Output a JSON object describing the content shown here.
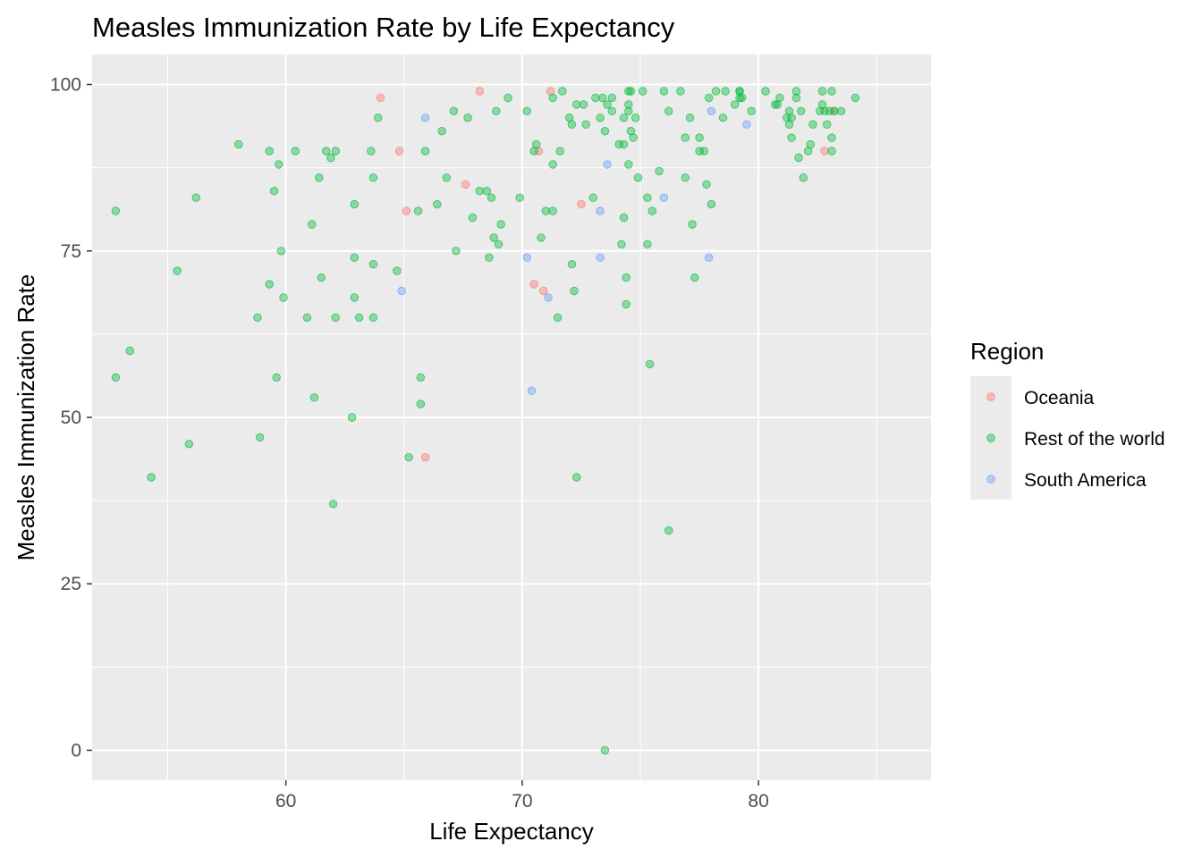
{
  "chart_data": {
    "type": "scatter",
    "title": "Measles Immunization Rate by Life Expectancy",
    "xlabel": "Life Expectancy",
    "ylabel": "Measles Immunization Rate",
    "xlim": [
      51.8,
      87.3
    ],
    "ylim": [
      -4.5,
      104.5
    ],
    "x_major_ticks": [
      60,
      70,
      80
    ],
    "x_minor_ticks": [
      55,
      65,
      75,
      85
    ],
    "y_major_ticks": [
      0,
      25,
      50,
      75,
      100
    ],
    "y_minor_ticks": [
      12.5,
      37.5,
      62.5,
      87.5
    ],
    "x_tick_labels": [
      "60",
      "70",
      "80"
    ],
    "y_tick_labels": [
      "0",
      "25",
      "50",
      "75",
      "100"
    ],
    "grid": true,
    "panel_background": "#ebebeb",
    "point_opacity": 0.4,
    "legend": {
      "title": "Region",
      "position": "right",
      "entries": [
        "Oceania",
        "Rest of the world",
        "South America"
      ]
    },
    "series": [
      {
        "name": "Oceania",
        "color": "#F8766D",
        "points": [
          [
            64.0,
            98
          ],
          [
            64.8,
            90
          ],
          [
            65.1,
            81
          ],
          [
            65.9,
            44
          ],
          [
            67.6,
            85
          ],
          [
            68.2,
            99
          ],
          [
            70.5,
            70
          ],
          [
            70.7,
            90
          ],
          [
            70.9,
            69
          ],
          [
            71.2,
            99
          ],
          [
            72.5,
            82
          ],
          [
            82.8,
            90
          ],
          [
            83.2,
            96
          ]
        ]
      },
      {
        "name": "Rest of the world",
        "color": "#00BA38",
        "points": [
          [
            52.8,
            81
          ],
          [
            52.8,
            56
          ],
          [
            53.4,
            60
          ],
          [
            54.3,
            41
          ],
          [
            55.4,
            72
          ],
          [
            55.9,
            46
          ],
          [
            56.2,
            83
          ],
          [
            58.0,
            91
          ],
          [
            58.8,
            65
          ],
          [
            58.9,
            47
          ],
          [
            59.3,
            90
          ],
          [
            59.3,
            70
          ],
          [
            59.5,
            84
          ],
          [
            59.6,
            56
          ],
          [
            59.7,
            88
          ],
          [
            59.8,
            75
          ],
          [
            59.9,
            68
          ],
          [
            60.4,
            90
          ],
          [
            60.9,
            65
          ],
          [
            61.1,
            79
          ],
          [
            61.2,
            53
          ],
          [
            61.4,
            86
          ],
          [
            61.5,
            71
          ],
          [
            61.7,
            90
          ],
          [
            61.9,
            89
          ],
          [
            62.0,
            37
          ],
          [
            62.1,
            90
          ],
          [
            62.1,
            65
          ],
          [
            62.8,
            50
          ],
          [
            62.9,
            82
          ],
          [
            62.9,
            74
          ],
          [
            62.9,
            68
          ],
          [
            63.1,
            65
          ],
          [
            63.6,
            90
          ],
          [
            63.7,
            86
          ],
          [
            63.7,
            73
          ],
          [
            63.7,
            65
          ],
          [
            63.9,
            95
          ],
          [
            64.7,
            72
          ],
          [
            65.2,
            44
          ],
          [
            65.6,
            81
          ],
          [
            65.7,
            56
          ],
          [
            65.7,
            52
          ],
          [
            65.9,
            90
          ],
          [
            66.4,
            82
          ],
          [
            66.6,
            93
          ],
          [
            66.8,
            86
          ],
          [
            67.1,
            96
          ],
          [
            67.2,
            75
          ],
          [
            67.7,
            95
          ],
          [
            67.9,
            80
          ],
          [
            68.2,
            84
          ],
          [
            68.5,
            84
          ],
          [
            68.6,
            74
          ],
          [
            68.7,
            83
          ],
          [
            68.8,
            77
          ],
          [
            68.9,
            96
          ],
          [
            69.0,
            76
          ],
          [
            69.1,
            79
          ],
          [
            69.4,
            98
          ],
          [
            69.9,
            83
          ],
          [
            70.2,
            96
          ],
          [
            70.5,
            90
          ],
          [
            70.6,
            91
          ],
          [
            70.8,
            77
          ],
          [
            71.0,
            81
          ],
          [
            71.3,
            98
          ],
          [
            71.3,
            88
          ],
          [
            71.3,
            81
          ],
          [
            71.5,
            65
          ],
          [
            71.6,
            90
          ],
          [
            71.7,
            99
          ],
          [
            72.0,
            95
          ],
          [
            72.1,
            94
          ],
          [
            72.1,
            73
          ],
          [
            72.2,
            69
          ],
          [
            72.3,
            97
          ],
          [
            72.3,
            41
          ],
          [
            72.6,
            97
          ],
          [
            72.7,
            94
          ],
          [
            73.0,
            83
          ],
          [
            73.1,
            98
          ],
          [
            73.3,
            95
          ],
          [
            73.4,
            98
          ],
          [
            73.5,
            93
          ],
          [
            73.5,
            0
          ],
          [
            73.6,
            97
          ],
          [
            73.8,
            98
          ],
          [
            73.8,
            96
          ],
          [
            74.1,
            91
          ],
          [
            74.2,
            76
          ],
          [
            74.3,
            95
          ],
          [
            74.3,
            80
          ],
          [
            74.3,
            91
          ],
          [
            74.4,
            71
          ],
          [
            74.4,
            67
          ],
          [
            74.5,
            99
          ],
          [
            74.5,
            97
          ],
          [
            74.5,
            96
          ],
          [
            74.5,
            88
          ],
          [
            74.6,
            99
          ],
          [
            74.6,
            93
          ],
          [
            74.7,
            92
          ],
          [
            74.8,
            95
          ],
          [
            74.9,
            86
          ],
          [
            75.1,
            99
          ],
          [
            75.3,
            83
          ],
          [
            75.3,
            76
          ],
          [
            75.4,
            58
          ],
          [
            75.5,
            81
          ],
          [
            75.8,
            87
          ],
          [
            76.0,
            99
          ],
          [
            76.2,
            96
          ],
          [
            76.2,
            33
          ],
          [
            76.7,
            99
          ],
          [
            76.9,
            92
          ],
          [
            76.9,
            86
          ],
          [
            77.1,
            95
          ],
          [
            77.2,
            79
          ],
          [
            77.3,
            71
          ],
          [
            77.5,
            92
          ],
          [
            77.5,
            90
          ],
          [
            77.7,
            90
          ],
          [
            77.8,
            85
          ],
          [
            77.9,
            98
          ],
          [
            78.0,
            82
          ],
          [
            78.2,
            99
          ],
          [
            78.5,
            95
          ],
          [
            78.6,
            99
          ],
          [
            79.0,
            97
          ],
          [
            79.2,
            99
          ],
          [
            79.2,
            99
          ],
          [
            79.2,
            98
          ],
          [
            79.3,
            98
          ],
          [
            79.7,
            96
          ],
          [
            80.3,
            99
          ],
          [
            80.7,
            97
          ],
          [
            80.8,
            97
          ],
          [
            80.9,
            98
          ],
          [
            81.2,
            95
          ],
          [
            81.3,
            94
          ],
          [
            81.3,
            96
          ],
          [
            81.4,
            92
          ],
          [
            81.4,
            95
          ],
          [
            81.6,
            98
          ],
          [
            81.6,
            99
          ],
          [
            81.7,
            89
          ],
          [
            81.8,
            96
          ],
          [
            81.9,
            86
          ],
          [
            82.1,
            90
          ],
          [
            82.2,
            91
          ],
          [
            82.3,
            94
          ],
          [
            82.6,
            96
          ],
          [
            82.7,
            99
          ],
          [
            82.7,
            97
          ],
          [
            82.8,
            96
          ],
          [
            82.9,
            94
          ],
          [
            83.0,
            96
          ],
          [
            83.1,
            92
          ],
          [
            83.1,
            99
          ],
          [
            83.1,
            90
          ],
          [
            83.2,
            96
          ],
          [
            83.5,
            96
          ],
          [
            84.1,
            98
          ]
        ]
      },
      {
        "name": "South America",
        "color": "#619CFF",
        "points": [
          [
            64.9,
            69
          ],
          [
            65.9,
            95
          ],
          [
            70.2,
            74
          ],
          [
            70.4,
            54
          ],
          [
            71.1,
            68
          ],
          [
            73.3,
            81
          ],
          [
            73.3,
            74
          ],
          [
            73.6,
            88
          ],
          [
            76.0,
            83
          ],
          [
            77.9,
            74
          ],
          [
            78.0,
            96
          ],
          [
            79.5,
            94
          ]
        ]
      }
    ]
  }
}
